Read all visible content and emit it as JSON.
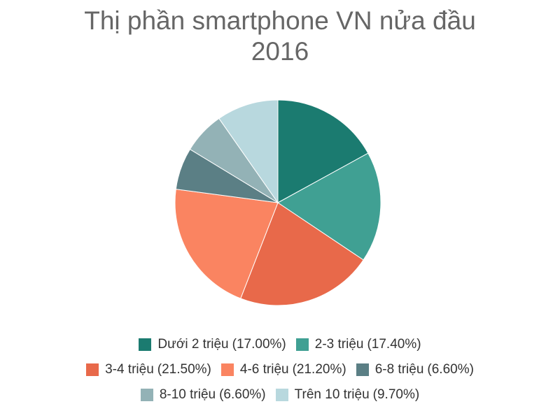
{
  "chart_data": {
    "type": "pie",
    "title": "Thị phần smartphone VN nửa đầu 2016",
    "categories": [
      "Dưới 2 triệu",
      "2-3 triệu",
      "3-4 triệu",
      "4-6 triệu",
      "6-8 triệu",
      "8-10 triệu",
      "Trên 10 triệu"
    ],
    "values": [
      17.0,
      17.4,
      21.5,
      21.2,
      6.6,
      6.6,
      9.7
    ],
    "value_labels": [
      "(17.00%)",
      "(17.40%)",
      "(21.50%)",
      "(21.20%)",
      "(6.60%)",
      "(6.60%)",
      "(9.70%)"
    ],
    "colors": [
      "#1b7b70",
      "#40a093",
      "#e8694a",
      "#fa8461",
      "#5b7f85",
      "#93b2b6",
      "#b8d8de"
    ],
    "legend": "bottom"
  }
}
